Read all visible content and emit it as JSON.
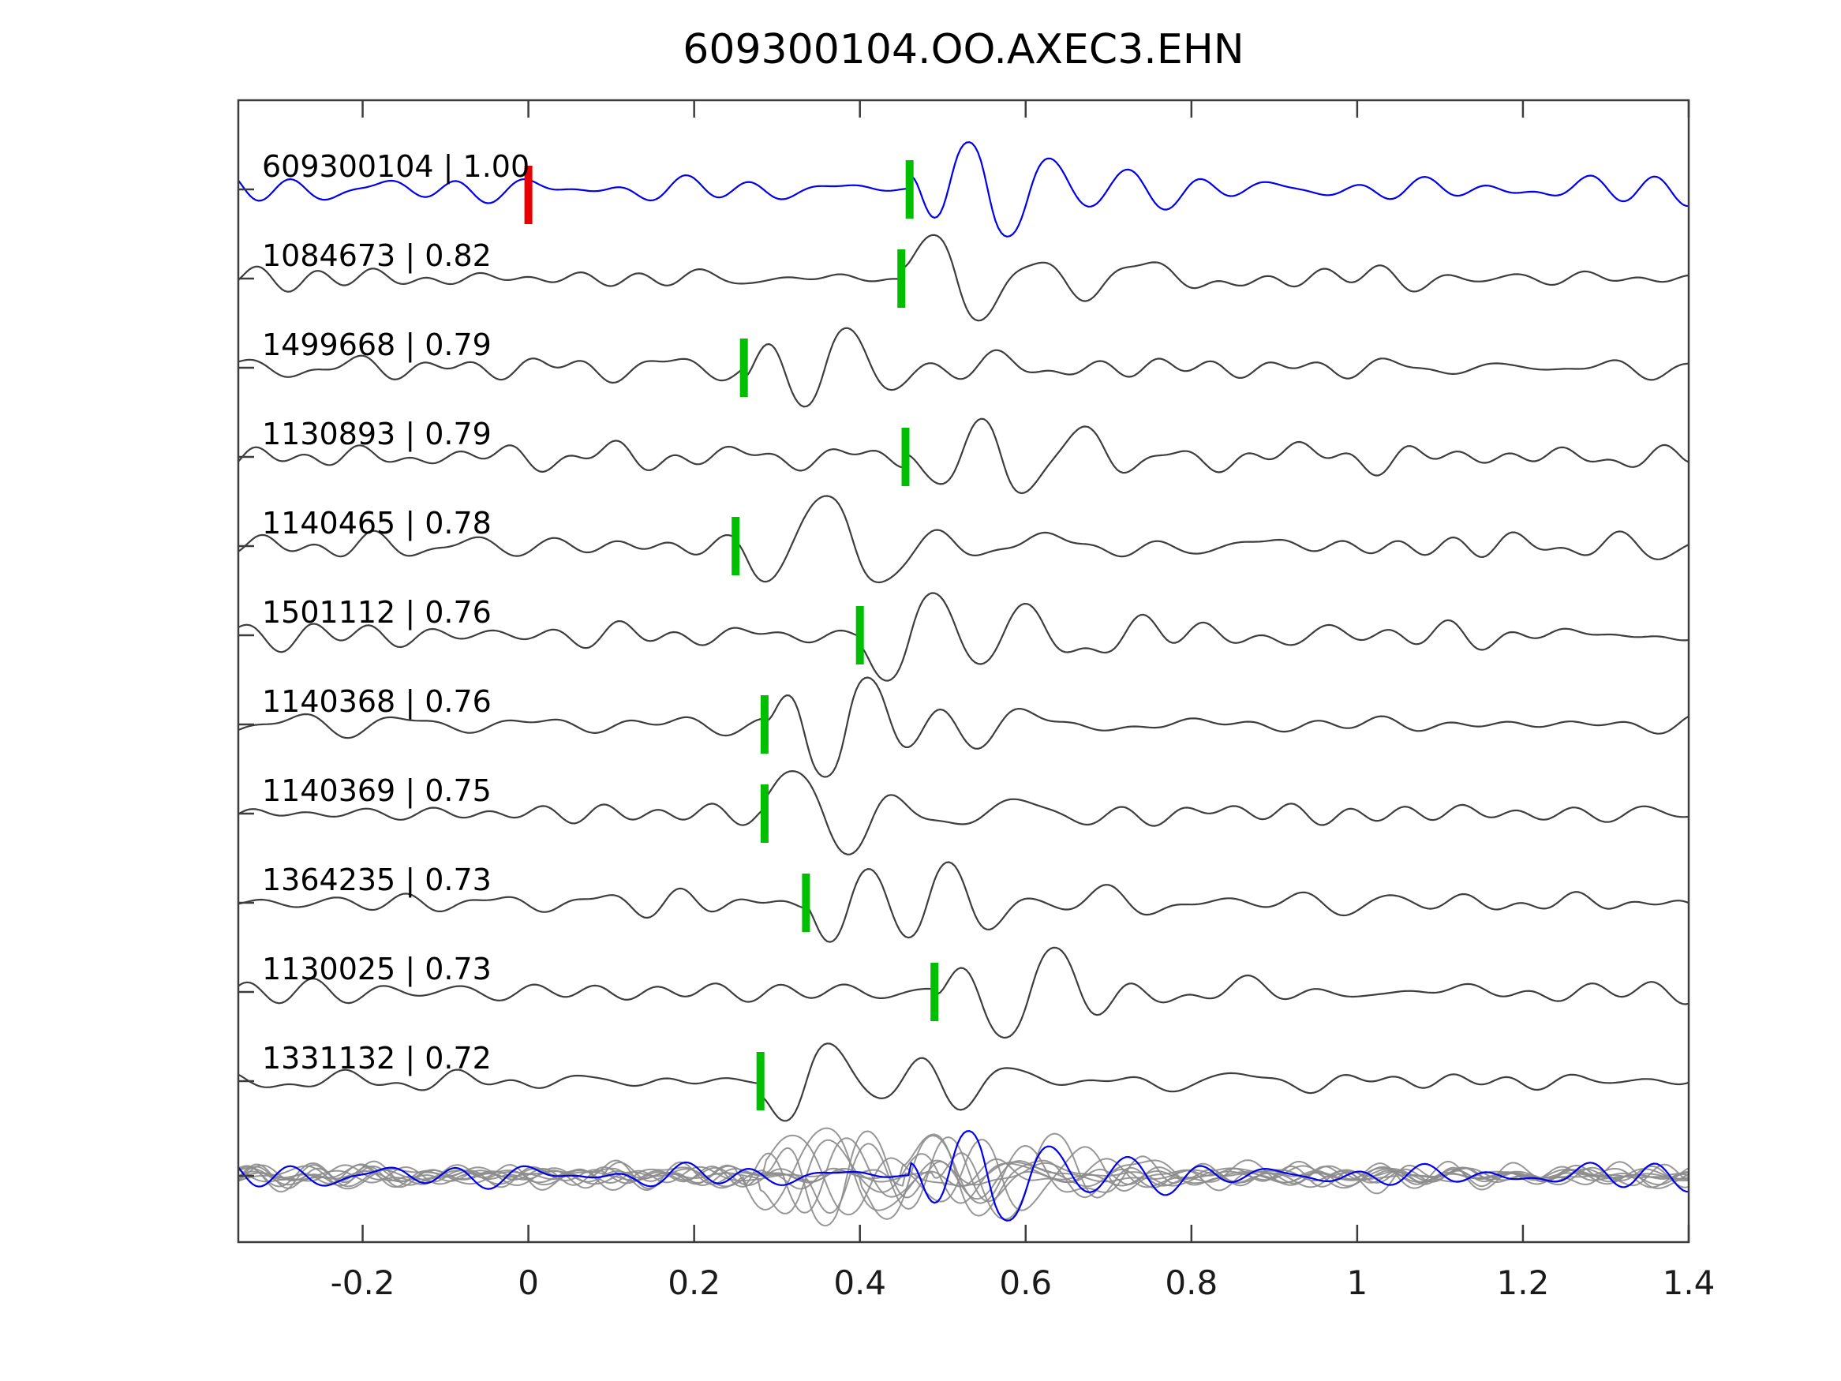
{
  "title": "609300104.OO.AXEC3.EHN",
  "colors": {
    "reference": "#0000ee",
    "trace": "#3d3d3d",
    "overlay": "#8c8c8c",
    "pick": "#00bf00",
    "reference_pick": "#e80000",
    "axis": "#3c3c3c",
    "tick_label": "#1a1a1a",
    "label_text": "#000000"
  },
  "axis": {
    "xlim": [
      -0.35,
      1.4
    ],
    "xticks": [
      "-0.2",
      "0",
      "0.2",
      "0.4",
      "0.6",
      "0.8",
      "1",
      "1.2",
      "1.4"
    ],
    "xtick_values": [
      -0.2,
      0,
      0.2,
      0.4,
      0.6,
      0.8,
      1,
      1.2,
      1.4
    ]
  },
  "chart_data": {
    "type": "line",
    "title": "609300104.OO.AXEC3.EHN",
    "xlabel": "",
    "ylabel": "",
    "xlim": [
      -0.35,
      1.4
    ],
    "xticks": [
      -0.2,
      0,
      0.2,
      0.4,
      0.6,
      0.8,
      1,
      1.2,
      1.4
    ],
    "grid": false,
    "legend": false,
    "traces": [
      {
        "id": "609300104",
        "correlation": 1.0,
        "label": "609300104 | 1.00",
        "pick_time": 0.46,
        "is_reference": true,
        "reference_marker_time": 0.0
      },
      {
        "id": "1084673",
        "correlation": 0.82,
        "label": "1084673 | 0.82",
        "pick_time": 0.45
      },
      {
        "id": "1499668",
        "correlation": 0.79,
        "label": "1499668 | 0.79",
        "pick_time": 0.26
      },
      {
        "id": "1130893",
        "correlation": 0.79,
        "label": "1130893 | 0.79",
        "pick_time": 0.455
      },
      {
        "id": "1140465",
        "correlation": 0.78,
        "label": "1140465 | 0.78",
        "pick_time": 0.25
      },
      {
        "id": "1501112",
        "correlation": 0.76,
        "label": "1501112 | 0.76",
        "pick_time": 0.4
      },
      {
        "id": "1140368",
        "correlation": 0.76,
        "label": "1140368 | 0.76",
        "pick_time": 0.285
      },
      {
        "id": "1140369",
        "correlation": 0.75,
        "label": "1140369 | 0.75",
        "pick_time": 0.285
      },
      {
        "id": "1364235",
        "correlation": 0.73,
        "label": "1364235 | 0.73",
        "pick_time": 0.335
      },
      {
        "id": "1130025",
        "correlation": 0.73,
        "label": "1130025 | 0.73",
        "pick_time": 0.49
      },
      {
        "id": "1331132",
        "correlation": 0.72,
        "label": "1331132 | 0.72",
        "pick_time": 0.28
      }
    ],
    "overlay_row": {
      "description": "all traces overlaid on common baseline at bottom of axes"
    }
  }
}
